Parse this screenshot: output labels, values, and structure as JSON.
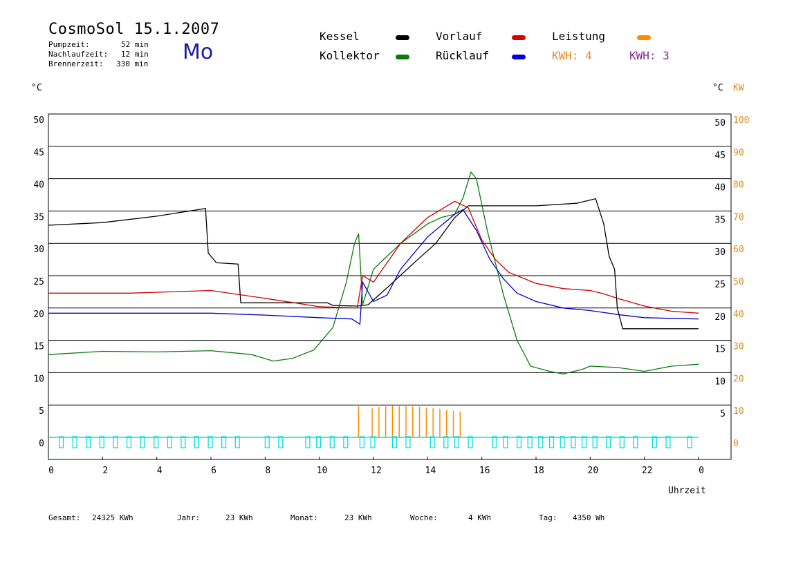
{
  "header": {
    "title": "CosmoSol 15.1.2007",
    "weekday": "Mo",
    "info": [
      {
        "label": "Pumpzeit:",
        "value": "52 min"
      },
      {
        "label": "Nachlaufzeit:",
        "value": "12 min"
      },
      {
        "label": "Brennerzeit:",
        "value": "330 min"
      }
    ]
  },
  "legend": {
    "kessel": "Kessel",
    "kollektor": "Kollektor",
    "vorlauf": "Vorlauf",
    "ruecklauf": "Rücklauf",
    "leistung": "Leistung",
    "kwh1": "KWH: 4",
    "kwh2": "KWH: 3"
  },
  "colors": {
    "kessel": "#000000",
    "kollektor": "#0a7a0a",
    "vorlauf": "#cc0000",
    "ruecklauf": "#0000cc",
    "leistung": "#ff8c00",
    "kwh2": "#8b2a8b",
    "pump": "#00e0e0"
  },
  "units": {
    "left": "°C",
    "right_c": "°C",
    "right_kw": "KW"
  },
  "footer": {
    "gesamt_label": "Gesamt:",
    "gesamt_value": "24325 KWh",
    "jahr_label": "Jahr:",
    "jahr_value": "23 KWh",
    "monat_label": "Monat:",
    "monat_value": "23 KWh",
    "woche_label": "Woche:",
    "woche_value": "4 KWh",
    "tag_label": "Tag:",
    "tag_value": "4350 Wh"
  },
  "chart_data": {
    "type": "line",
    "title": "CosmoSol 15.1.2007",
    "xlabel": "Uhrzeit",
    "xlim": [
      0,
      24
    ],
    "x_ticks": [
      "0",
      "2",
      "4",
      "6",
      "8",
      "10",
      "12",
      "14",
      "16",
      "18",
      "20",
      "22",
      "0"
    ],
    "y_left": {
      "label": "°C",
      "ticks": [
        "0",
        "5",
        "10",
        "15",
        "20",
        "25",
        "30",
        "35",
        "40",
        "45",
        "50"
      ],
      "ylim": [
        0,
        50
      ]
    },
    "y_right_c": {
      "label": "°C",
      "ticks": [
        "5",
        "10",
        "15",
        "20",
        "25",
        "30",
        "35",
        "40",
        "45",
        "50"
      ]
    },
    "y_right_kw": {
      "label": "KW",
      "ticks": [
        "0",
        "10",
        "20",
        "30",
        "40",
        "50",
        "60",
        "70",
        "80",
        "90",
        "100"
      ],
      "ylim": [
        0,
        100
      ]
    },
    "grid": "horizontal",
    "series": [
      {
        "name": "Kessel",
        "color": "#000000",
        "points": [
          [
            0,
            32.8
          ],
          [
            2,
            33.2
          ],
          [
            4,
            34.2
          ],
          [
            5.8,
            35.4
          ],
          [
            5.9,
            28.5
          ],
          [
            6.2,
            27.0
          ],
          [
            7.0,
            26.8
          ],
          [
            7.1,
            20.8
          ],
          [
            10.3,
            20.8
          ],
          [
            10.5,
            20.4
          ],
          [
            11.4,
            20.3
          ],
          [
            11.8,
            20.5
          ],
          [
            12.6,
            23.5
          ],
          [
            13.5,
            27.0
          ],
          [
            14.3,
            30.0
          ],
          [
            15.0,
            34.0
          ],
          [
            15.5,
            35.8
          ],
          [
            18.0,
            35.8
          ],
          [
            19.5,
            36.2
          ],
          [
            20.2,
            36.9
          ],
          [
            20.5,
            33.0
          ],
          [
            20.7,
            28.0
          ],
          [
            20.9,
            26.0
          ],
          [
            21.0,
            20.0
          ],
          [
            21.2,
            16.8
          ],
          [
            24.0,
            16.8
          ]
        ]
      },
      {
        "name": "Kollektor",
        "color": "#0a7a0a",
        "points": [
          [
            0,
            12.8
          ],
          [
            2,
            13.3
          ],
          [
            4,
            13.2
          ],
          [
            6,
            13.4
          ],
          [
            7.5,
            12.8
          ],
          [
            8.3,
            11.8
          ],
          [
            9.0,
            12.2
          ],
          [
            9.8,
            13.5
          ],
          [
            10.5,
            17.0
          ],
          [
            11.0,
            24.0
          ],
          [
            11.3,
            30.0
          ],
          [
            11.45,
            31.5
          ],
          [
            11.6,
            20.5
          ],
          [
            12,
            26.0
          ],
          [
            12.5,
            28.0
          ],
          [
            13,
            30.0
          ],
          [
            13.5,
            31.5
          ],
          [
            14,
            33.0
          ],
          [
            14.5,
            34.0
          ],
          [
            15,
            34.5
          ],
          [
            15.3,
            37.0
          ],
          [
            15.6,
            41.0
          ],
          [
            15.8,
            40.0
          ],
          [
            16.2,
            32.0
          ],
          [
            16.8,
            22.0
          ],
          [
            17.3,
            15.0
          ],
          [
            17.8,
            11.0
          ],
          [
            18.5,
            10.2
          ],
          [
            19,
            9.8
          ],
          [
            19.7,
            10.5
          ],
          [
            20,
            11.0
          ],
          [
            21,
            10.8
          ],
          [
            22,
            10.2
          ],
          [
            23,
            11.0
          ],
          [
            24,
            11.3
          ]
        ]
      },
      {
        "name": "Vorlauf",
        "color": "#cc0000",
        "points": [
          [
            0,
            22.3
          ],
          [
            3,
            22.3
          ],
          [
            6,
            22.7
          ],
          [
            8,
            21.5
          ],
          [
            10,
            20.2
          ],
          [
            11.4,
            20.0
          ],
          [
            11.6,
            25.0
          ],
          [
            12,
            24.0
          ],
          [
            13,
            30.0
          ],
          [
            14,
            34.0
          ],
          [
            15,
            36.5
          ],
          [
            15.5,
            35.5
          ],
          [
            16.0,
            30.5
          ],
          [
            16.5,
            27.5
          ],
          [
            17,
            25.5
          ],
          [
            18,
            23.8
          ],
          [
            19,
            23.0
          ],
          [
            20,
            22.7
          ],
          [
            20.5,
            22.2
          ],
          [
            21,
            21.5
          ],
          [
            22,
            20.3
          ],
          [
            23,
            19.5
          ],
          [
            24,
            19.2
          ]
        ]
      },
      {
        "name": "Rücklauf",
        "color": "#0000cc",
        "points": [
          [
            0,
            19.2
          ],
          [
            6,
            19.2
          ],
          [
            8,
            18.9
          ],
          [
            10,
            18.5
          ],
          [
            11.2,
            18.3
          ],
          [
            11.5,
            17.5
          ],
          [
            11.6,
            24.0
          ],
          [
            12,
            21.0
          ],
          [
            12.5,
            22.0
          ],
          [
            13,
            26.0
          ],
          [
            14,
            31.0
          ],
          [
            15,
            34.5
          ],
          [
            15.3,
            35.2
          ],
          [
            15.8,
            32.0
          ],
          [
            16.3,
            27.5
          ],
          [
            16.8,
            24.5
          ],
          [
            17.3,
            22.3
          ],
          [
            18,
            21.0
          ],
          [
            19,
            20.0
          ],
          [
            20,
            19.6
          ],
          [
            21,
            19.0
          ],
          [
            22,
            18.5
          ],
          [
            23,
            18.4
          ],
          [
            24,
            18.3
          ]
        ]
      }
    ],
    "leistung_peaks_kw": [
      [
        11.45,
        9.6
      ],
      [
        11.95,
        9.0
      ],
      [
        12.2,
        9.4
      ],
      [
        12.45,
        9.6
      ],
      [
        12.7,
        9.8
      ],
      [
        12.95,
        10.0
      ],
      [
        13.2,
        9.6
      ],
      [
        13.45,
        9.5
      ],
      [
        13.7,
        9.4
      ],
      [
        13.95,
        9.2
      ],
      [
        14.2,
        9.0
      ],
      [
        14.45,
        8.8
      ],
      [
        14.7,
        8.5
      ],
      [
        14.95,
        8.2
      ],
      [
        15.2,
        8.0
      ]
    ],
    "pump_intervals_h": [
      [
        0.4,
        0.55
      ],
      [
        0.9,
        1.05
      ],
      [
        1.4,
        1.55
      ],
      [
        1.9,
        2.05
      ],
      [
        2.4,
        2.55
      ],
      [
        2.9,
        3.05
      ],
      [
        3.4,
        3.55
      ],
      [
        3.9,
        4.05
      ],
      [
        4.4,
        4.55
      ],
      [
        4.9,
        5.05
      ],
      [
        5.4,
        5.55
      ],
      [
        5.9,
        6.05
      ],
      [
        6.4,
        6.55
      ],
      [
        6.9,
        7.05
      ],
      [
        8.0,
        8.15
      ],
      [
        8.5,
        8.65
      ],
      [
        9.5,
        9.65
      ],
      [
        9.9,
        10.05
      ],
      [
        10.4,
        10.55
      ],
      [
        10.9,
        11.05
      ],
      [
        11.5,
        11.65
      ],
      [
        11.9,
        12.05
      ],
      [
        12.7,
        12.85
      ],
      [
        13.2,
        13.35
      ],
      [
        14.1,
        14.25
      ],
      [
        14.6,
        14.75
      ],
      [
        15.0,
        15.15
      ],
      [
        15.5,
        15.65
      ],
      [
        16.4,
        16.55
      ],
      [
        16.8,
        16.95
      ],
      [
        17.3,
        17.45
      ],
      [
        17.7,
        17.85
      ],
      [
        18.1,
        18.25
      ],
      [
        18.5,
        18.65
      ],
      [
        18.9,
        19.05
      ],
      [
        19.3,
        19.45
      ],
      [
        19.7,
        19.85
      ],
      [
        20.1,
        20.25
      ],
      [
        20.6,
        20.75
      ],
      [
        21.1,
        21.25
      ],
      [
        21.6,
        21.75
      ],
      [
        22.3,
        22.45
      ],
      [
        22.8,
        22.95
      ],
      [
        23.6,
        23.75
      ]
    ]
  }
}
